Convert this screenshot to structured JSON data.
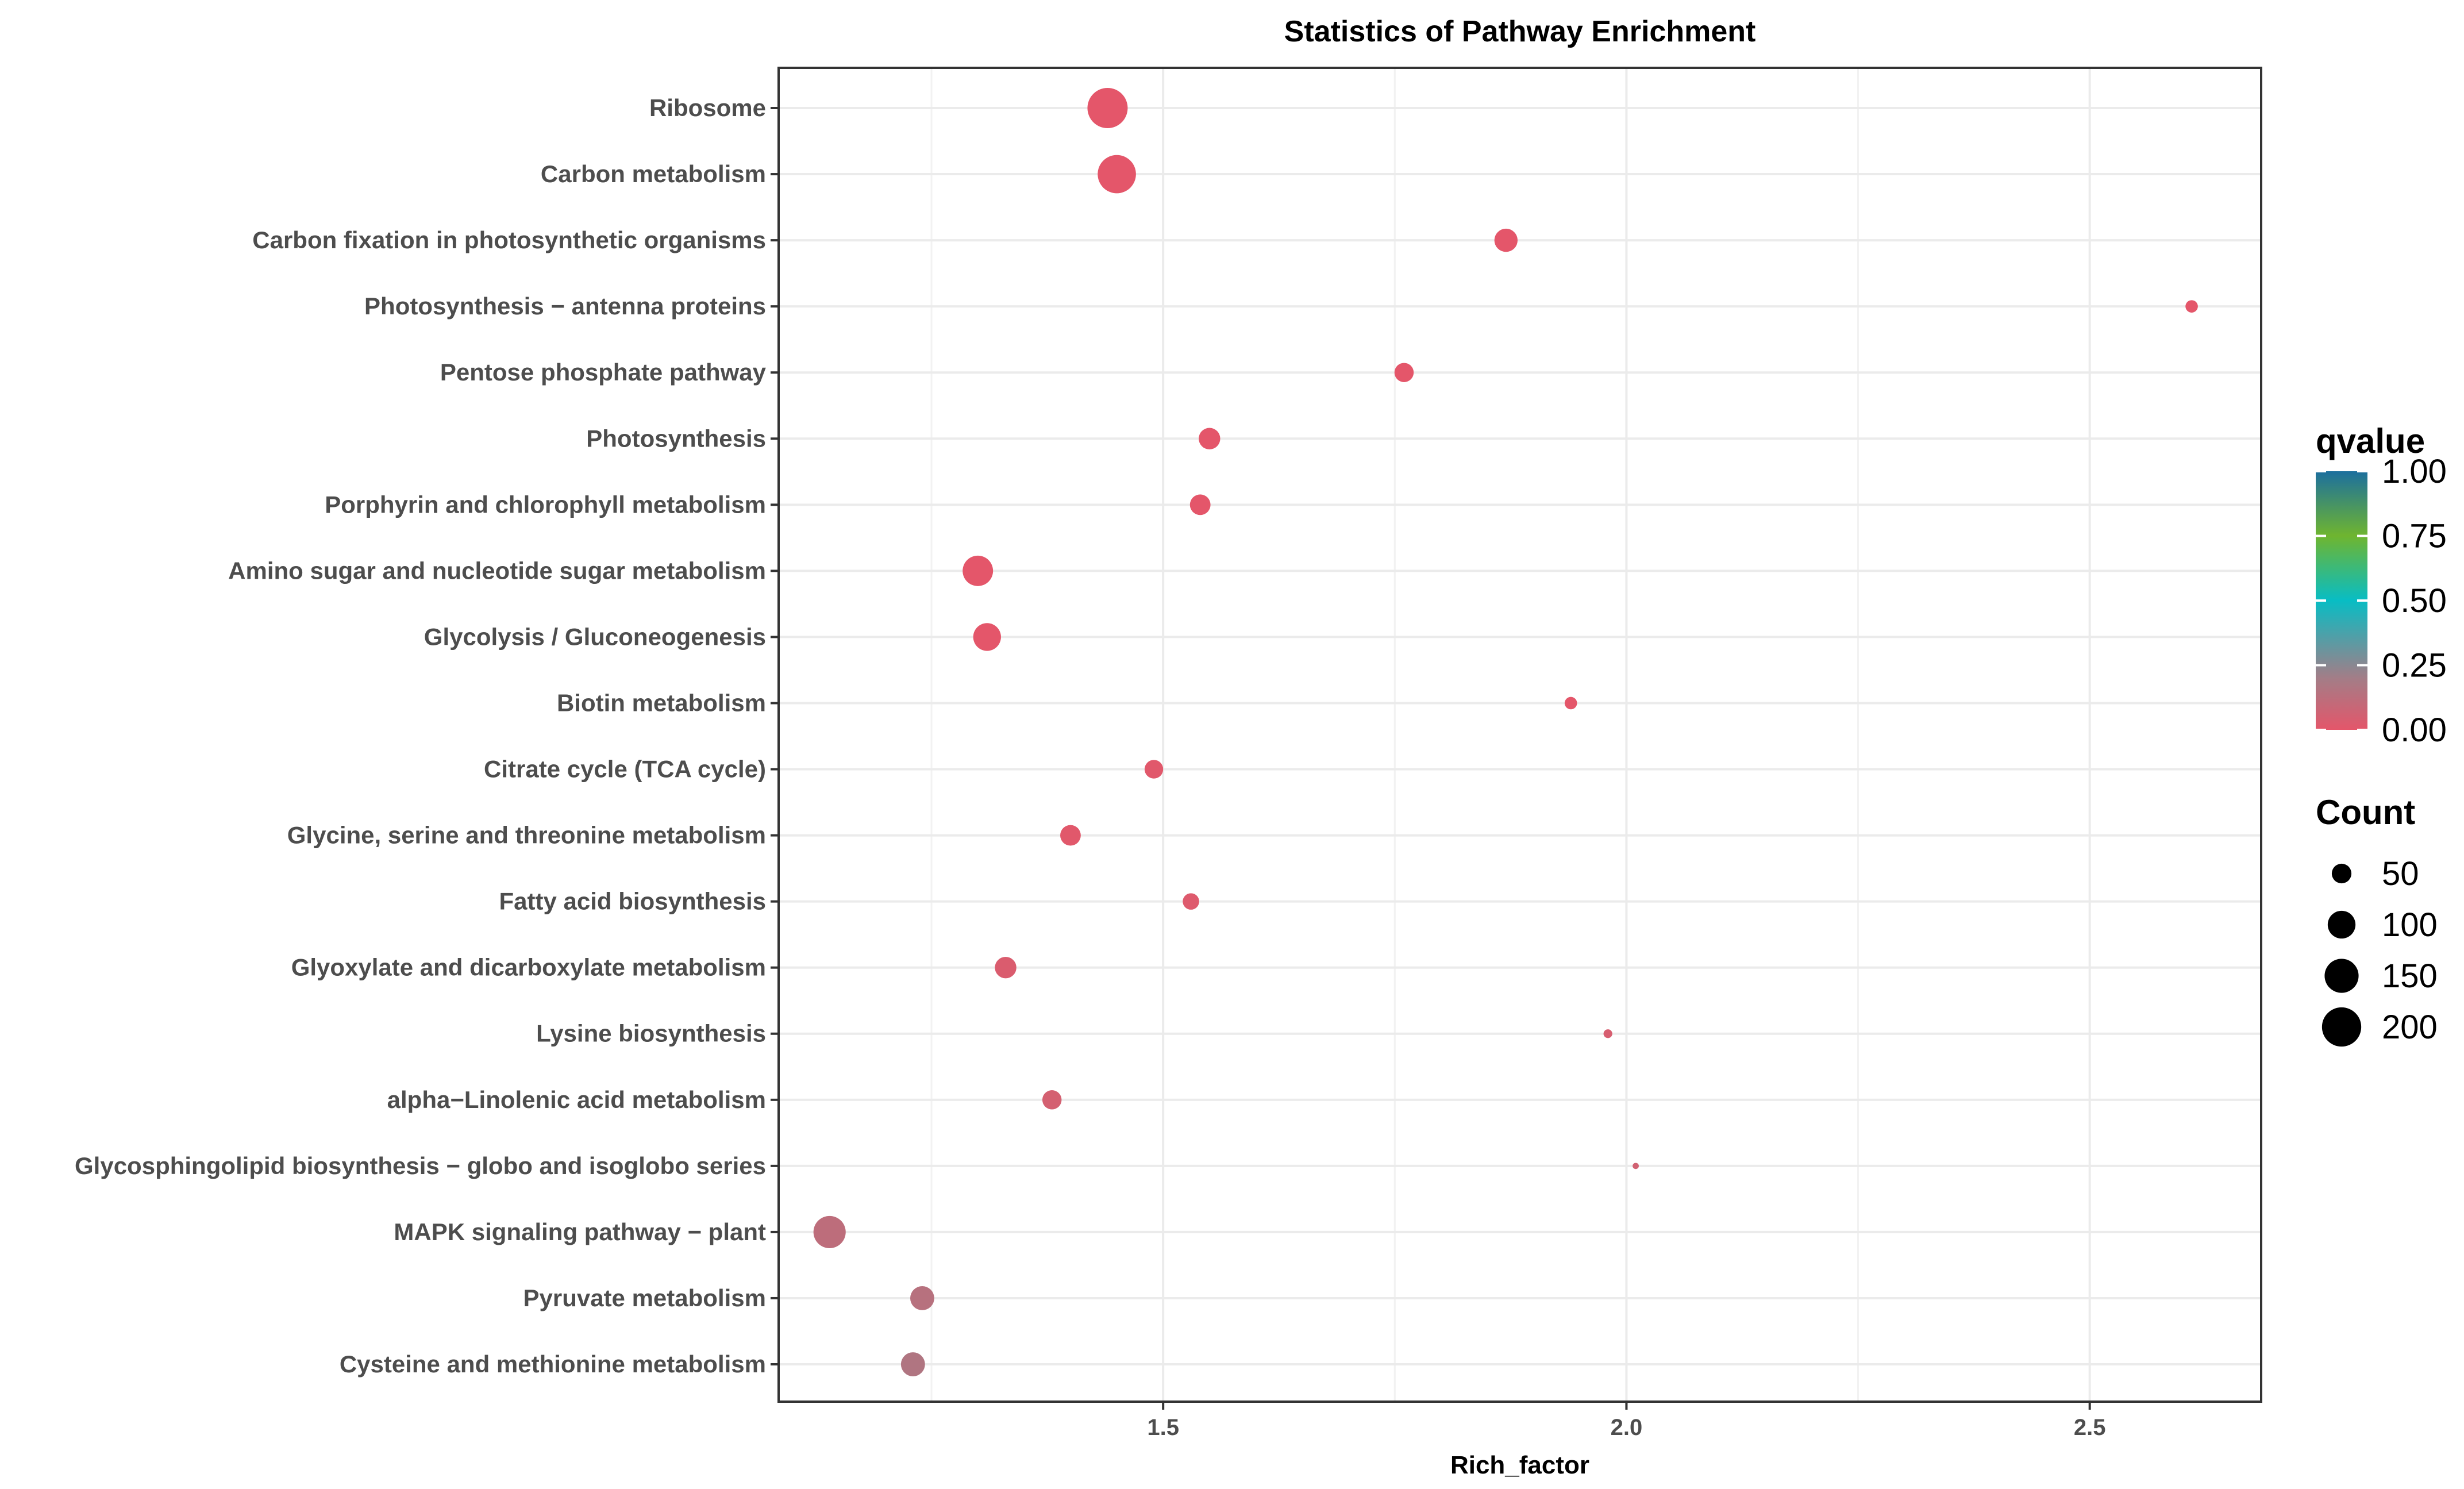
{
  "chart_data": {
    "type": "scatter",
    "title": "Statistics of Pathway Enrichment",
    "xlabel": "Rich_factor",
    "ylabel": "",
    "xlim": [
      1.085,
      2.685
    ],
    "xticks": [
      1.5,
      2.0,
      2.5
    ],
    "xtick_labels": [
      "1.5",
      "2.0",
      "2.5"
    ],
    "grid": true,
    "points": [
      {
        "pathway": "Ribosome",
        "rich_factor": 1.44,
        "count": 210,
        "qvalue": 0.0
      },
      {
        "pathway": "Carbon metabolism",
        "rich_factor": 1.45,
        "count": 190,
        "qvalue": 0.0
      },
      {
        "pathway": "Carbon fixation in photosynthetic organisms",
        "rich_factor": 1.87,
        "count": 70,
        "qvalue": 0.0
      },
      {
        "pathway": "Photosynthesis − antenna proteins",
        "rich_factor": 2.61,
        "count": 20,
        "qvalue": 0.0
      },
      {
        "pathway": "Pentose phosphate pathway",
        "rich_factor": 1.76,
        "count": 48,
        "qvalue": 0.0
      },
      {
        "pathway": "Photosynthesis",
        "rich_factor": 1.55,
        "count": 60,
        "qvalue": 0.0
      },
      {
        "pathway": "Porphyrin and chlorophyll metabolism",
        "rich_factor": 1.54,
        "count": 55,
        "qvalue": 0.0
      },
      {
        "pathway": "Amino sugar and nucleotide sugar metabolism",
        "rich_factor": 1.3,
        "count": 120,
        "qvalue": 0.0
      },
      {
        "pathway": "Glycolysis / Gluconeogenesis",
        "rich_factor": 1.31,
        "count": 100,
        "qvalue": 0.0
      },
      {
        "pathway": "Biotin metabolism",
        "rich_factor": 1.94,
        "count": 20,
        "qvalue": 0.0
      },
      {
        "pathway": "Citrate cycle (TCA cycle)",
        "rich_factor": 1.49,
        "count": 45,
        "qvalue": 0.01
      },
      {
        "pathway": "Glycine, serine and threonine metabolism",
        "rich_factor": 1.4,
        "count": 55,
        "qvalue": 0.01
      },
      {
        "pathway": "Fatty acid biosynthesis",
        "rich_factor": 1.53,
        "count": 35,
        "qvalue": 0.02
      },
      {
        "pathway": "Glyoxylate and dicarboxylate metabolism",
        "rich_factor": 1.33,
        "count": 60,
        "qvalue": 0.03
      },
      {
        "pathway": "Lysine biosynthesis",
        "rich_factor": 1.98,
        "count": 10,
        "qvalue": 0.04
      },
      {
        "pathway": "alpha−Linolenic acid metabolism",
        "rich_factor": 1.38,
        "count": 48,
        "qvalue": 0.05
      },
      {
        "pathway": "Glycosphingolipid biosynthesis − globo and isoglobo series",
        "rich_factor": 2.01,
        "count": 5,
        "qvalue": 0.06
      },
      {
        "pathway": "MAPK signaling pathway − plant",
        "rich_factor": 1.14,
        "count": 135,
        "qvalue": 0.12
      },
      {
        "pathway": "Pyruvate metabolism",
        "rich_factor": 1.24,
        "count": 75,
        "qvalue": 0.14
      },
      {
        "pathway": "Cysteine and methionine metabolism",
        "rich_factor": 1.23,
        "count": 75,
        "qvalue": 0.16
      }
    ],
    "legend": {
      "color_title": "qvalue",
      "color_ticks": [
        0.0,
        0.25,
        0.5,
        0.75,
        1.0
      ],
      "color_tick_labels": [
        "0.00",
        "0.25",
        "0.50",
        "0.75",
        "1.00"
      ],
      "color_stops": [
        "#e4566a",
        "#a37d87",
        "#08bdc4",
        "#6fb52f",
        "#1c6f9e"
      ],
      "size_title": "Count",
      "size_values": [
        50,
        100,
        150,
        200
      ],
      "size_labels": [
        "50",
        "100",
        "150",
        "200"
      ],
      "placement": "right"
    }
  }
}
